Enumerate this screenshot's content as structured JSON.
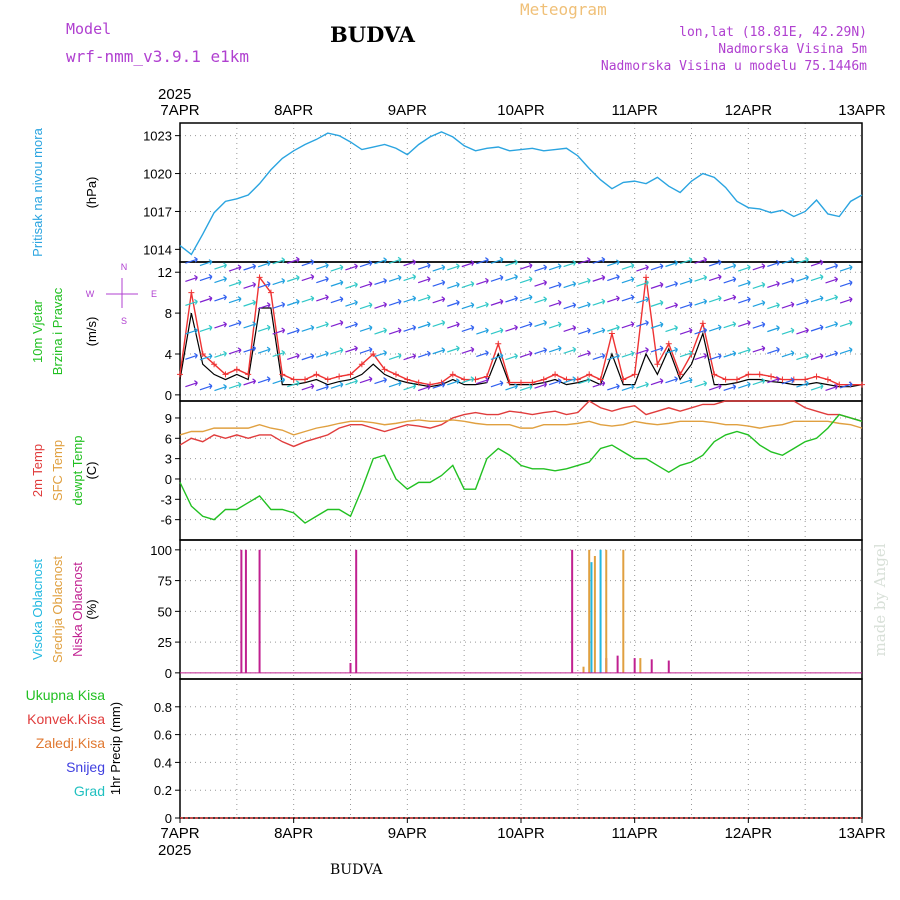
{
  "header": {
    "model_label": "Model",
    "model_name": "wrf-nmm_v3.9.1 e1km",
    "station": "BUDVA",
    "product": "Meteogram",
    "coords": "lon,lat (18.81E, 42.29N)",
    "elevation": "Nadmorska Visina 5m",
    "model_elevation": "Nadmorska Visina u modelu 75.1446m",
    "footer_station": "BUDVA",
    "credit": "made by Angel"
  },
  "time_axis": {
    "year": "2025",
    "labels": [
      "7APR",
      "8APR",
      "9APR",
      "10APR",
      "11APR",
      "12APR",
      "13APR"
    ]
  },
  "colors": {
    "pressure": "#2aa4e0",
    "wind_speed": "#000000",
    "wind_gust": "#ee3333",
    "temp_2m": "#e03c3c",
    "temp_sfc": "#e0a040",
    "dewpoint": "#22c022",
    "cloud_high": "#22b8e0",
    "cloud_mid": "#e0a040",
    "cloud_low": "#c02090",
    "label_precip_total": "#22c022",
    "label_precip_conv": "#e03c3c",
    "label_precip_frozen": "#e07830",
    "label_snow": "#4040e0",
    "label_graupel": "#20c0c0"
  },
  "chart_data": [
    {
      "type": "line",
      "panel": "pressure",
      "ylabel_lines": [
        "Pritisak na nivou mora"
      ],
      "unit": "(hPa)",
      "yticks": [
        1014,
        1017,
        1020,
        1023
      ],
      "ylim": [
        1013,
        1024
      ],
      "x_days": [
        0,
        0.1,
        0.2,
        0.3,
        0.4,
        0.5,
        0.6,
        0.7,
        0.8,
        0.9,
        1.0,
        1.1,
        1.2,
        1.3,
        1.4,
        1.5,
        1.6,
        1.7,
        1.8,
        1.9,
        2.0,
        2.1,
        2.2,
        2.3,
        2.4,
        2.5,
        2.6,
        2.7,
        2.8,
        2.9,
        3.0,
        3.1,
        3.2,
        3.3,
        3.4,
        3.5,
        3.6,
        3.7,
        3.8,
        3.9,
        4.0,
        4.1,
        4.2,
        4.3,
        4.4,
        4.5,
        4.6,
        4.7,
        4.8,
        4.9,
        5.0,
        5.1,
        5.2,
        5.3,
        5.4,
        5.5,
        5.6,
        5.7,
        5.8,
        5.9,
        6.0
      ],
      "series": [
        {
          "values": [
            1014.3,
            1013.6,
            1015.2,
            1016.9,
            1017.8,
            1018.0,
            1018.3,
            1019.2,
            1020.3,
            1021.2,
            1021.8,
            1022.3,
            1022.7,
            1023.2,
            1023.0,
            1022.5,
            1021.9,
            1022.1,
            1022.3,
            1022.0,
            1021.5,
            1022.3,
            1022.9,
            1023.3,
            1022.9,
            1022.2,
            1021.8,
            1022.0,
            1022.1,
            1021.8,
            1021.9,
            1022.0,
            1021.8,
            1021.9,
            1022.0,
            1021.4,
            1020.4,
            1019.5,
            1018.8,
            1019.3,
            1019.4,
            1019.2,
            1019.7,
            1019.0,
            1018.5,
            1019.4,
            1020.0,
            1019.7,
            1018.9,
            1017.8,
            1017.3,
            1017.2,
            1016.9,
            1017.1,
            1016.6,
            1017.0,
            1017.9,
            1016.8,
            1016.6,
            1017.8,
            1018.3
          ]
        }
      ]
    },
    {
      "type": "line",
      "panel": "wind",
      "ylabel_lines": [
        "10m Vjetar",
        "Brzina i Pravac"
      ],
      "unit": "(m/s)",
      "yticks": [
        0,
        4,
        8,
        12
      ],
      "ylim": [
        -0.6,
        13
      ],
      "direction_legend": [
        "N",
        "E",
        "S",
        "W"
      ],
      "x_days": [
        0,
        0.1,
        0.2,
        0.3,
        0.4,
        0.5,
        0.6,
        0.7,
        0.8,
        0.9,
        1.0,
        1.1,
        1.2,
        1.3,
        1.4,
        1.5,
        1.6,
        1.7,
        1.8,
        1.9,
        2.0,
        2.1,
        2.2,
        2.3,
        2.4,
        2.5,
        2.6,
        2.7,
        2.8,
        2.9,
        3.0,
        3.1,
        3.2,
        3.3,
        3.4,
        3.5,
        3.6,
        3.7,
        3.8,
        3.9,
        4.0,
        4.1,
        4.2,
        4.3,
        4.4,
        4.5,
        4.6,
        4.7,
        4.8,
        4.9,
        5.0,
        5.1,
        5.2,
        5.3,
        5.4,
        5.5,
        5.6,
        5.7,
        5.8,
        5.9,
        6.0
      ],
      "series": [
        {
          "name": "speed",
          "values": [
            1.5,
            8.0,
            3.0,
            2.0,
            1.5,
            2.0,
            1.5,
            8.5,
            8.5,
            1.0,
            1.0,
            1.2,
            1.5,
            1.0,
            1.3,
            1.5,
            2.0,
            3.0,
            2.0,
            1.5,
            1.2,
            1.0,
            0.8,
            1.0,
            1.5,
            1.0,
            1.0,
            1.2,
            4.0,
            1.0,
            1.0,
            1.0,
            1.2,
            1.5,
            1.0,
            1.2,
            1.5,
            1.0,
            4.0,
            1.0,
            1.0,
            4.0,
            2.0,
            4.5,
            1.5,
            3.0,
            6.0,
            1.0,
            1.0,
            1.2,
            1.5,
            1.5,
            1.3,
            1.2,
            1.0,
            1.0,
            1.2,
            1.0,
            0.8,
            0.8,
            1.0
          ]
        },
        {
          "name": "gust",
          "values": [
            2.0,
            10.0,
            4.0,
            3.0,
            2.0,
            2.5,
            2.0,
            11.5,
            10.0,
            2.0,
            1.5,
            1.5,
            2.0,
            1.5,
            1.8,
            2.0,
            3.0,
            4.0,
            2.5,
            2.0,
            1.5,
            1.2,
            1.0,
            1.2,
            2.0,
            1.5,
            1.5,
            1.8,
            5.0,
            1.2,
            1.2,
            1.2,
            1.5,
            2.0,
            1.5,
            1.5,
            2.0,
            1.5,
            6.0,
            1.5,
            2.0,
            11.5,
            3.0,
            5.0,
            2.0,
            4.0,
            7.0,
            2.0,
            1.5,
            1.5,
            2.0,
            2.0,
            1.8,
            1.5,
            1.5,
            1.5,
            1.8,
            1.5,
            1.0,
            1.0,
            1.0
          ]
        }
      ]
    },
    {
      "type": "line",
      "panel": "temperature",
      "ylabel_lines": [
        "2m Temp",
        "SFC Temp",
        "dewpt Temp"
      ],
      "unit": "(C)",
      "yticks": [
        -6,
        -3,
        0,
        3,
        6,
        9
      ],
      "ylim": [
        -9,
        11.5
      ],
      "x_days": [
        0,
        0.1,
        0.2,
        0.3,
        0.4,
        0.5,
        0.6,
        0.7,
        0.8,
        0.9,
        1.0,
        1.1,
        1.2,
        1.3,
        1.4,
        1.5,
        1.6,
        1.7,
        1.8,
        1.9,
        2.0,
        2.1,
        2.2,
        2.3,
        2.4,
        2.5,
        2.6,
        2.7,
        2.8,
        2.9,
        3.0,
        3.1,
        3.2,
        3.3,
        3.4,
        3.5,
        3.6,
        3.7,
        3.8,
        3.9,
        4.0,
        4.1,
        4.2,
        4.3,
        4.4,
        4.5,
        4.6,
        4.7,
        4.8,
        4.9,
        5.0,
        5.1,
        5.2,
        5.3,
        5.4,
        5.5,
        5.6,
        5.7,
        5.8,
        5.9,
        6.0
      ],
      "series": [
        {
          "name": "2m",
          "values": [
            5.0,
            6.0,
            5.5,
            6.5,
            6.0,
            6.5,
            6.0,
            6.5,
            6.5,
            5.5,
            4.8,
            5.5,
            6.0,
            6.5,
            7.5,
            8.0,
            8.0,
            7.5,
            7.0,
            7.5,
            8.0,
            7.8,
            7.5,
            8.0,
            9.0,
            9.5,
            9.8,
            9.5,
            9.5,
            10.0,
            9.8,
            9.5,
            9.8,
            10.0,
            9.5,
            9.8,
            11.5,
            10.5,
            10.0,
            10.5,
            10.8,
            9.5,
            10.0,
            10.5,
            10.0,
            10.5,
            11.0,
            11.0,
            11.5,
            11.5,
            11.5,
            11.5,
            11.5,
            11.5,
            11.5,
            10.5,
            10.0,
            9.5,
            9.5,
            9.0,
            8.5
          ]
        },
        {
          "name": "sfc",
          "values": [
            6.5,
            7.0,
            7.0,
            7.5,
            7.5,
            7.5,
            7.5,
            8.0,
            7.5,
            7.2,
            6.5,
            7.0,
            7.5,
            7.8,
            8.2,
            8.5,
            8.5,
            8.3,
            8.0,
            8.2,
            8.5,
            8.7,
            8.5,
            8.5,
            8.7,
            8.5,
            8.2,
            8.0,
            8.0,
            8.0,
            7.5,
            7.5,
            8.0,
            8.0,
            8.0,
            8.2,
            8.5,
            8.0,
            7.8,
            8.0,
            8.5,
            8.2,
            8.0,
            8.2,
            8.5,
            8.5,
            8.5,
            8.3,
            8.0,
            8.0,
            7.8,
            7.5,
            7.8,
            8.0,
            8.5,
            8.5,
            8.5,
            8.5,
            8.2,
            8.0,
            7.5
          ]
        },
        {
          "name": "dewpt",
          "values": [
            -0.5,
            -4.0,
            -5.5,
            -6.0,
            -4.5,
            -4.5,
            -3.5,
            -2.5,
            -4.5,
            -4.5,
            -5.0,
            -6.5,
            -5.5,
            -4.5,
            -4.5,
            -5.5,
            -1.5,
            3.0,
            3.5,
            0.0,
            -1.5,
            -0.5,
            -0.5,
            0.5,
            2.0,
            -1.5,
            -1.5,
            3.0,
            4.5,
            3.5,
            2.0,
            1.5,
            1.5,
            1.2,
            1.5,
            2.0,
            2.5,
            4.5,
            5.0,
            4.0,
            3.0,
            3.0,
            2.0,
            1.0,
            2.0,
            2.5,
            3.5,
            5.5,
            6.5,
            7.0,
            6.5,
            5.0,
            4.0,
            3.5,
            4.5,
            5.5,
            6.0,
            7.5,
            9.5,
            9.0,
            8.5
          ]
        }
      ]
    },
    {
      "type": "bar",
      "panel": "cloud",
      "ylabel_lines": [
        "Visoka Oblacnost",
        "Srednja Oblacnost",
        "Niska Oblacnost"
      ],
      "unit": "(%)",
      "yticks": [
        0,
        25,
        50,
        75,
        100
      ],
      "ylim": [
        -5,
        108
      ],
      "series": [
        {
          "name": "low",
          "x_days": [
            0.54,
            0.58,
            0.7,
            1.5,
            1.55,
            3.45,
            3.75,
            3.85,
            4.0,
            4.15,
            4.3
          ],
          "values": [
            100,
            100,
            100,
            8,
            100,
            100,
            12,
            14,
            12,
            11,
            10
          ]
        },
        {
          "name": "mid",
          "x_days": [
            3.55,
            3.6,
            3.65,
            3.75,
            3.9,
            4.05
          ],
          "values": [
            5,
            100,
            95,
            100,
            100,
            12
          ]
        },
        {
          "name": "high",
          "x_days": [
            3.62,
            3.7
          ],
          "values": [
            90,
            100
          ]
        }
      ]
    },
    {
      "type": "bar",
      "panel": "precip",
      "ylabel_lines": [
        "Ukupna Kisa",
        "Konvek.Kisa",
        "Zaledj.Kisa",
        "Snijeg",
        "Grad"
      ],
      "unit": "1hr Precip (mm)",
      "yticks": [
        0,
        0.2,
        0.4,
        0.6,
        0.8
      ],
      "ytick_labels": [
        "0",
        "0.2",
        "0.4",
        "0.6",
        "0.8"
      ],
      "ylim": [
        0,
        1
      ],
      "series": []
    }
  ]
}
